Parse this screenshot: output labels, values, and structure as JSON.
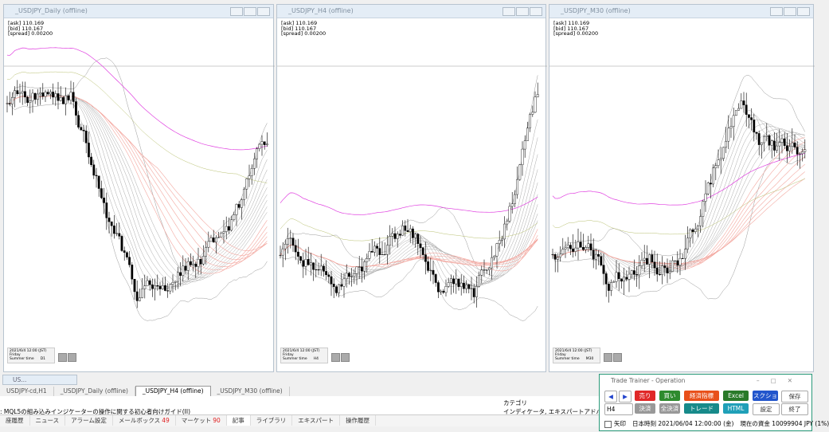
{
  "windows": [
    {
      "title": "_USDJPY_Daily (offline)",
      "info": [
        "[ask] 110.169",
        "[bid] 110.167",
        "[spread] 0.00200"
      ],
      "footer": {
        "date": "2021/6/4 12:00 (JST)",
        "day": "Friday",
        "summer": "Summer time",
        "tf": "D1"
      }
    },
    {
      "title": "_USDJPY_H4 (offline)",
      "info": [
        "[ask] 110.169",
        "[bid] 110.167",
        "[spread] 0.00200"
      ],
      "footer": {
        "date": "2021/6/4 12:00 (JST)",
        "day": "Friday",
        "summer": "Summer time",
        "tf": "H4"
      }
    },
    {
      "title": "_USDJPY_M30 (offline)",
      "info": [
        "[ask] 110.169",
        "[bid] 110.167",
        "[spread] 0.00200"
      ],
      "footer": {
        "date": "2021/6/4 12:00 (JST)",
        "day": "Friday",
        "summer": "Summer time",
        "tf": "M30"
      }
    }
  ],
  "minimized": "US...",
  "tabs": [
    "USDJPY-cd,H1",
    "_USDJPY_Daily (offline)",
    "_USDJPY_H4 (offline)",
    "_USDJPY_M30 (offline)"
  ],
  "article": {
    "title": ": MQL5の組み込みインジケーターの操作に関する初心者向けガイド(II)",
    "category_label": "カテゴリ",
    "category": "インディケータ, エキスパートアドバイザー, インディ"
  },
  "toolbox_tabs": [
    {
      "label": "座履歴"
    },
    {
      "label": "ニュース"
    },
    {
      "label": "アラーム設定"
    },
    {
      "label": "メールボックス",
      "badge": "49"
    },
    {
      "label": "マーケット",
      "badge": "90"
    },
    {
      "label": "記事"
    },
    {
      "label": "ライブラリ"
    },
    {
      "label": "エキスパート"
    },
    {
      "label": "操作履歴"
    }
  ],
  "trainer": {
    "title": "Trade Trainer - Operation",
    "row1": [
      "◀",
      "▶",
      "売り",
      "買い",
      "経済指標",
      "Excel",
      "スクショ",
      "保存"
    ],
    "timeframe": "H4",
    "row2": [
      "決済",
      "全決済",
      "トレード",
      "HTML",
      "設定",
      "終了"
    ],
    "arrow": "矢印",
    "time": "日本時刻 2021/06/04 12:00:00 (金)",
    "funds": "現在の資金 10099904 JPY (1%)"
  }
}
